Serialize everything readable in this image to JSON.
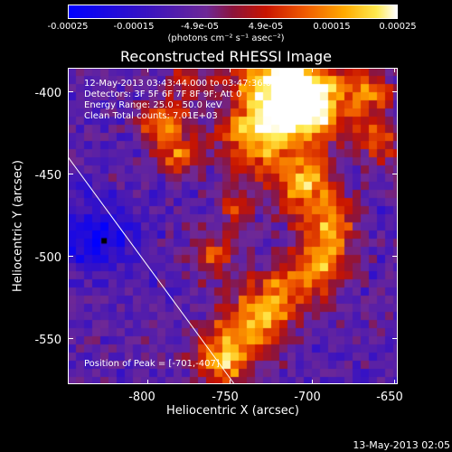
{
  "colorbar": {
    "ticks": [
      "-0.00025",
      "-0.00015",
      "-4.9e-05",
      "4.9e-05",
      "0.00015",
      "0.00025"
    ],
    "units": "(photons cm⁻² s⁻¹ asec⁻²)",
    "range": [
      -0.00025,
      0.00025
    ]
  },
  "chart_data": {
    "type": "heatmap",
    "title": "Reconstructed RHESSI Image",
    "xlabel": "Heliocentric X (arcsec)",
    "ylabel": "Heliocentric Y (arcsec)",
    "xlim": [
      -848,
      -648
    ],
    "ylim": [
      -578,
      -386
    ],
    "xticks": [
      "-800",
      "-750",
      "-700",
      "-650"
    ],
    "yticks": [
      "-400",
      "-450",
      "-500",
      "-550"
    ],
    "annotations": [
      "12-May-2013 03:43:44.000 to 03:47:36.000",
      "Detectors: 3F 5F 6F 7F 8F 9F; Att 0",
      "Energy Range: 25.0 - 50.0 keV",
      "Clean    Total counts: 7.01E+03"
    ],
    "peak_label": "Position of Peak = [-701,-407]",
    "peak": [
      -701,
      -407
    ],
    "limb_line": [
      [
        -848,
        -440
      ],
      [
        -747,
        -578
      ]
    ],
    "grid": false
  },
  "footer": "13-May-2013 02:05"
}
